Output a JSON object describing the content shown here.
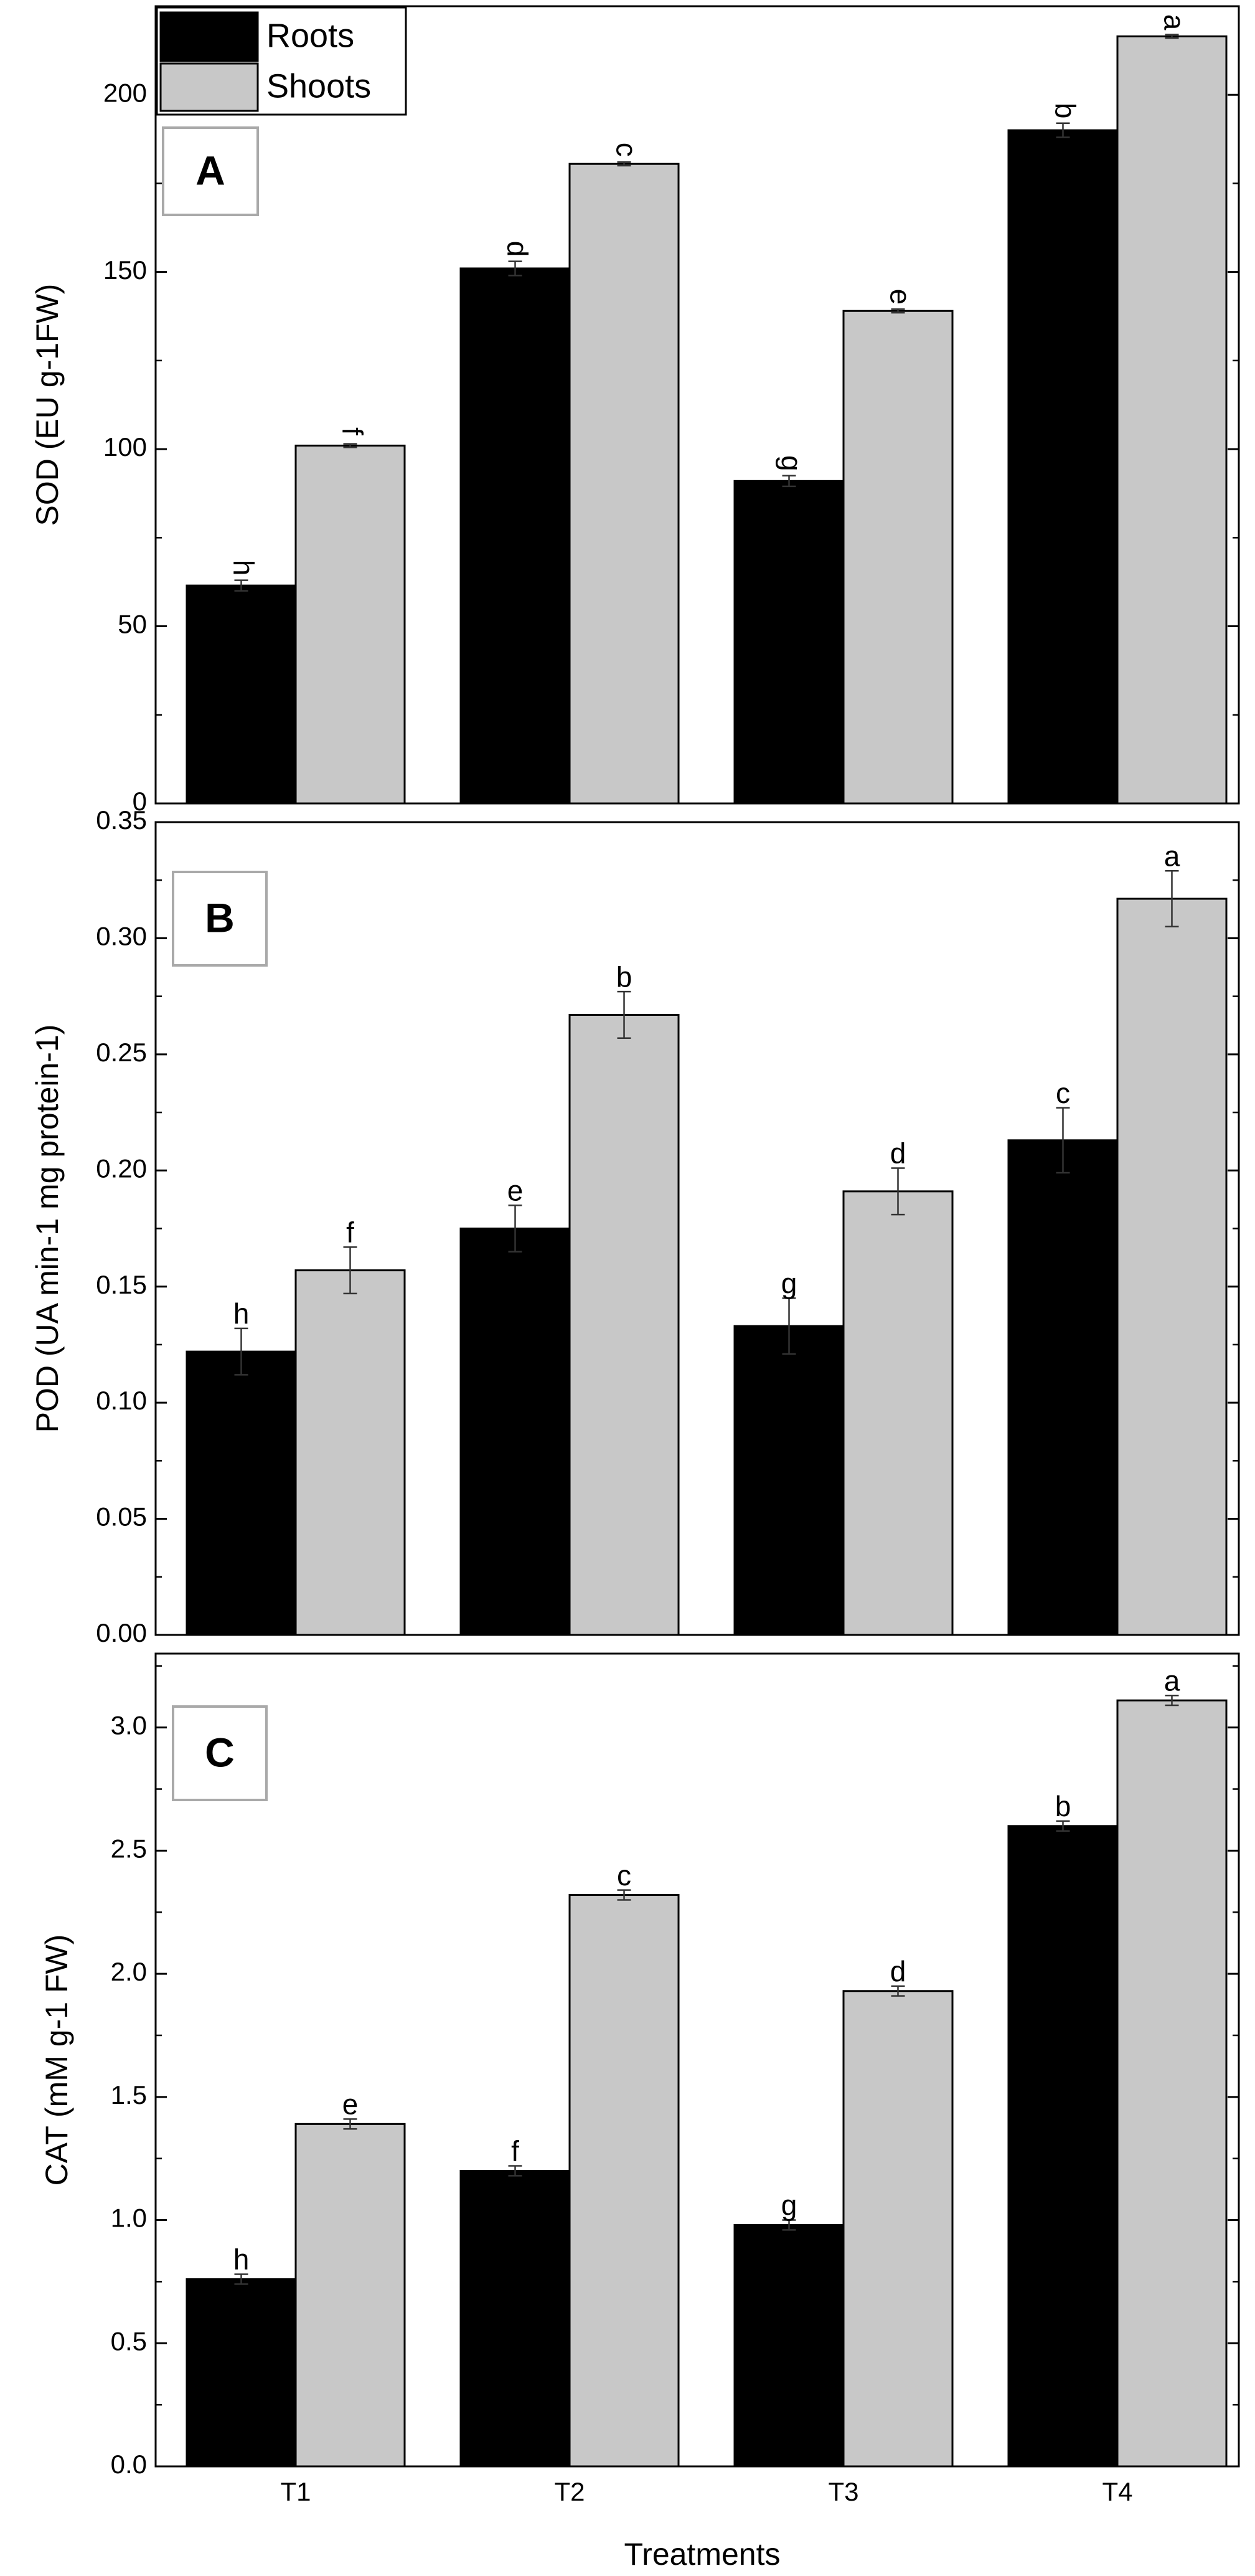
{
  "colors": {
    "roots": "#000000",
    "shoots": "#c8c8c8",
    "axis": "#000000",
    "panel_label_border": "#a9a9a9"
  },
  "legend": {
    "position": "top-left",
    "items": [
      {
        "label": "Roots",
        "color": "#000000"
      },
      {
        "label": "Shoots",
        "color": "#c8c8c8"
      }
    ]
  },
  "xlabel": "Treatments",
  "chart_data": [
    {
      "type": "bar",
      "panel_label": "A",
      "ylabel": "SOD (EU g-1FW)",
      "categories": [
        "T1",
        "T2",
        "T3",
        "T4"
      ],
      "ylim": [
        0,
        225
      ],
      "yticks": [
        0,
        50,
        100,
        150,
        200
      ],
      "ytick_labels": [
        "0",
        "50",
        "100",
        "150",
        "200"
      ],
      "grid": false,
      "series": [
        {
          "name": "Roots",
          "color": "#000000",
          "values": [
            61.5,
            151,
            91,
            190
          ],
          "errors": [
            1.5,
            2,
            1.5,
            2
          ],
          "letters": [
            "h",
            "d",
            "g",
            "b"
          ]
        },
        {
          "name": "Shoots",
          "color": "#c8c8c8",
          "values": [
            101,
            180.5,
            139,
            216.5
          ],
          "errors": [
            0.5,
            0.5,
            0.5,
            0.5
          ],
          "letters": [
            "f",
            "c",
            "e",
            "a"
          ]
        }
      ]
    },
    {
      "type": "bar",
      "panel_label": "B",
      "ylabel": "POD (UA min-1 mg protein-1)",
      "categories": [
        "T1",
        "T2",
        "T3",
        "T4"
      ],
      "ylim": [
        0,
        0.35
      ],
      "yticks": [
        0,
        0.05,
        0.1,
        0.15,
        0.2,
        0.25,
        0.3,
        0.35
      ],
      "ytick_labels": [
        "0.00",
        "0.05",
        "0.10",
        "0.15",
        "0.20",
        "0.25",
        "0.30",
        "0.35"
      ],
      "grid": false,
      "series": [
        {
          "name": "Roots",
          "color": "#000000",
          "values": [
            0.122,
            0.175,
            0.133,
            0.213
          ],
          "errors": [
            0.01,
            0.01,
            0.012,
            0.014
          ],
          "letters": [
            "h",
            "e",
            "g",
            "c"
          ]
        },
        {
          "name": "Shoots",
          "color": "#c8c8c8",
          "values": [
            0.157,
            0.267,
            0.191,
            0.317
          ],
          "errors": [
            0.01,
            0.01,
            0.01,
            0.012
          ],
          "letters": [
            "f",
            "b",
            "d",
            "a"
          ]
        }
      ]
    },
    {
      "type": "bar",
      "panel_label": "C",
      "ylabel": "CAT (mM g-1 FW)",
      "categories": [
        "T1",
        "T2",
        "T3",
        "T4"
      ],
      "ylim": [
        0,
        3.3
      ],
      "yticks": [
        0,
        0.5,
        1,
        1.5,
        2,
        2.5,
        3
      ],
      "ytick_labels": [
        "0.0",
        "0.5",
        "1.0",
        "1.5",
        "2.0",
        "2.5",
        "3.0"
      ],
      "grid": false,
      "series": [
        {
          "name": "Roots",
          "color": "#000000",
          "values": [
            0.76,
            1.2,
            0.98,
            2.6
          ],
          "errors": [
            0.02,
            0.02,
            0.02,
            0.02
          ],
          "letters": [
            "h",
            "f",
            "g",
            "b"
          ]
        },
        {
          "name": "Shoots",
          "color": "#c8c8c8",
          "values": [
            1.39,
            2.32,
            1.93,
            3.11
          ],
          "errors": [
            0.02,
            0.02,
            0.02,
            0.02
          ],
          "letters": [
            "e",
            "c",
            "d",
            "a"
          ]
        }
      ]
    }
  ]
}
